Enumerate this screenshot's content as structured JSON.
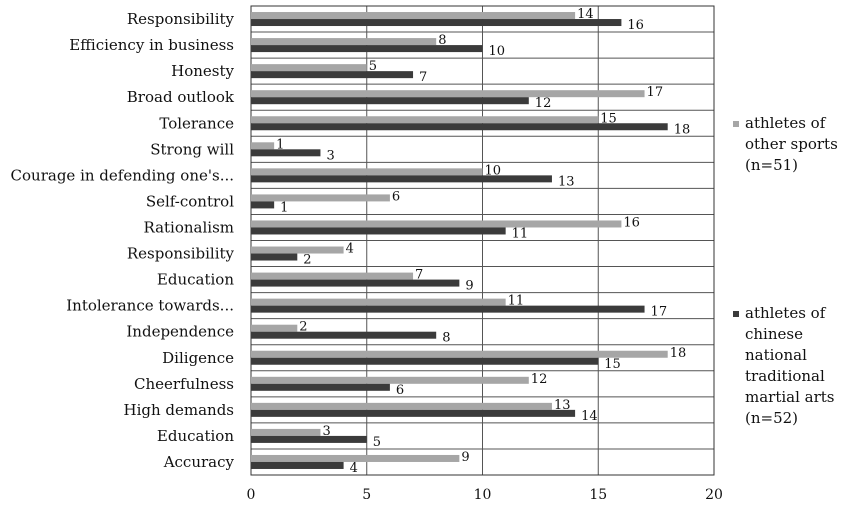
{
  "chart_data": {
    "type": "bar",
    "orientation": "horizontal",
    "title": "",
    "xlabel": "",
    "ylabel": "",
    "xlim": [
      0,
      20
    ],
    "x_ticks": [
      "0",
      "5",
      "10",
      "15",
      "20"
    ],
    "grid": true,
    "legend_position": "right",
    "categories": [
      "Responsibility",
      "Efficiency in business",
      "Honesty",
      "Broad outlook",
      "Tolerance",
      "Strong will",
      "Courage in defending one's...",
      "Self-control",
      "Rationalism",
      "Responsibility",
      "Education",
      "Intolerance towards...",
      "Independence",
      "Diligence",
      "Cheerfulness",
      "High demands",
      "Education",
      "Accuracy"
    ],
    "series": [
      {
        "name": "athletes of other sports (n=51)",
        "legend_lines": [
          "athletes of",
          "other sports",
          "(n=51)"
        ],
        "color": "#a6a6a6",
        "values": [
          14,
          8,
          5,
          17,
          15,
          1,
          10,
          6,
          16,
          4,
          7,
          11,
          2,
          18,
          12,
          13,
          3,
          9
        ]
      },
      {
        "name": "athletes of chinese national traditional martial arts (n=52)",
        "legend_lines": [
          "athletes of",
          "chinese",
          "national",
          "traditional",
          "martial arts",
          "(n=52)"
        ],
        "color": "#3b3b3b",
        "values": [
          16,
          10,
          7,
          12,
          18,
          3,
          13,
          1,
          11,
          2,
          9,
          17,
          8,
          15,
          6,
          14,
          5,
          4
        ]
      }
    ]
  }
}
